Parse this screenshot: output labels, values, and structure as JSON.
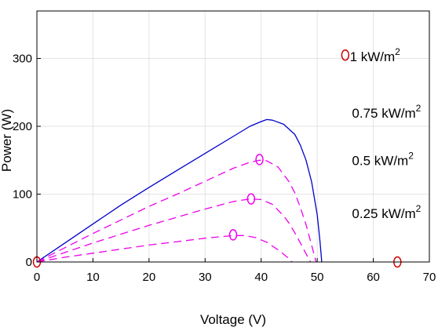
{
  "chart_data": {
    "type": "line",
    "xlabel": "Voltage (V)",
    "ylabel": "Power (W)",
    "xlim": [
      0,
      70
    ],
    "ylim": [
      0,
      370
    ],
    "xticks": [
      0,
      10,
      20,
      30,
      40,
      50,
      60,
      70
    ],
    "yticks": [
      0,
      100,
      200,
      300
    ],
    "grid": true,
    "series": [
      {
        "name": "1 kW/m2",
        "style": "solid",
        "color": "#0000cc",
        "x": [
          0,
          5,
          10,
          15,
          20,
          25,
          30,
          35,
          38,
          40,
          41,
          42,
          44,
          46,
          47,
          48,
          49,
          50,
          50.5,
          50.8
        ],
        "y": [
          0,
          28,
          56,
          84,
          110,
          135,
          160,
          185,
          200,
          207,
          210,
          209,
          203,
          188,
          172,
          150,
          118,
          70,
          30,
          0
        ],
        "mpp": null
      },
      {
        "name": "0.75 kW/m2",
        "style": "dashed",
        "color": "#ee00ee",
        "x": [
          0,
          5,
          10,
          15,
          20,
          25,
          30,
          35,
          38,
          39.7,
          41,
          43,
          45,
          46,
          47,
          48,
          49,
          49.8
        ],
        "y": [
          0,
          21,
          42,
          62,
          82,
          100,
          119,
          138,
          147,
          150,
          149,
          140,
          118,
          102,
          80,
          55,
          25,
          0
        ],
        "mpp": [
          39.7,
          151
        ]
      },
      {
        "name": "0.5 kW/m2",
        "style": "dashed",
        "color": "#ee00ee",
        "x": [
          0,
          5,
          10,
          15,
          20,
          25,
          30,
          35,
          38,
          40,
          42,
          44,
          45,
          46,
          47,
          48,
          48.8
        ],
        "y": [
          0,
          14,
          28,
          41,
          54,
          66,
          78,
          89,
          93,
          92,
          85,
          68,
          57,
          43,
          28,
          12,
          0
        ],
        "mpp": [
          38.2,
          93
        ]
      },
      {
        "name": "0.25 kW/m2",
        "style": "dashed",
        "color": "#ee00ee",
        "x": [
          0,
          5,
          10,
          15,
          20,
          25,
          30,
          35,
          37,
          39,
          41,
          43,
          45,
          46,
          47
        ],
        "y": [
          0,
          7,
          13,
          19,
          25,
          30,
          35,
          39,
          39,
          36,
          29,
          18,
          5,
          -5,
          -15
        ],
        "mpp": [
          35,
          40
        ]
      }
    ],
    "extra_markers": [
      {
        "x": 0,
        "y": 0,
        "color": "#cc0000"
      },
      {
        "x": 64.3,
        "y": 0,
        "color": "#cc0000"
      },
      {
        "x": 55,
        "y": 305,
        "color": "#cc0000"
      }
    ],
    "legend": [
      {
        "text": "1 kW/m",
        "sup": "2",
        "x": 55.8,
        "y": 296
      },
      {
        "text": "0.75 kW/m",
        "sup": "2",
        "x": 56.2,
        "y": 213
      },
      {
        "text": "0.5 kW/m",
        "sup": "2",
        "x": 56.2,
        "y": 143
      },
      {
        "text": "0.25 kW/m",
        "sup": "2",
        "x": 56.2,
        "y": 65
      }
    ]
  }
}
